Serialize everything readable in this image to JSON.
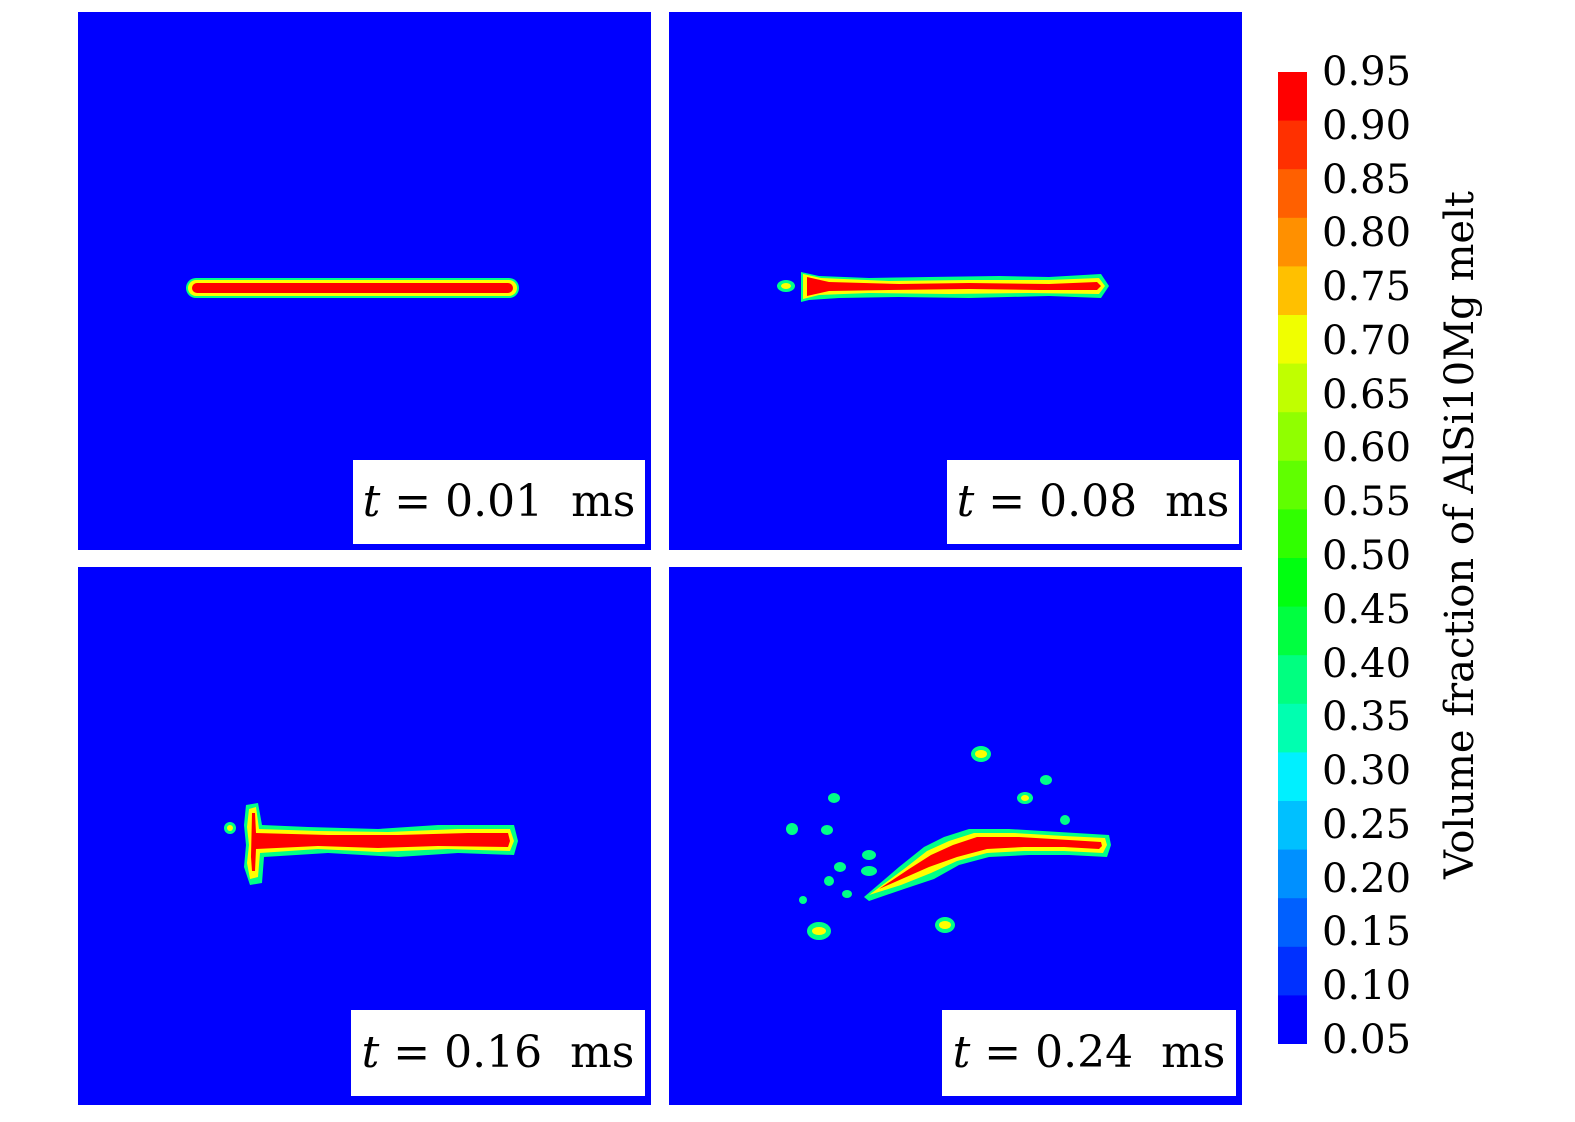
{
  "panels": [
    {
      "id": "p1",
      "time_prefix": "t",
      "time_value": "= 0.01  ms"
    },
    {
      "id": "p2",
      "time_prefix": "t",
      "time_value": "= 0.08  ms"
    },
    {
      "id": "p3",
      "time_prefix": "t",
      "time_value": "= 0.16  ms"
    },
    {
      "id": "p4",
      "time_prefix": "t",
      "time_value": "= 0.24  ms"
    }
  ],
  "colorbar": {
    "title": "Volume fraction of AlSi10Mg melt",
    "ticks": [
      "0.95",
      "0.90",
      "0.85",
      "0.80",
      "0.75",
      "0.70",
      "0.65",
      "0.60",
      "0.55",
      "0.50",
      "0.45",
      "0.40",
      "0.35",
      "0.30",
      "0.25",
      "0.20",
      "0.15",
      "0.10",
      "0.05"
    ],
    "colors": [
      "#ff0000",
      "#ff3000",
      "#ff6000",
      "#ff9000",
      "#ffc000",
      "#f0ff00",
      "#c0ff00",
      "#90ff00",
      "#60ff00",
      "#30ff00",
      "#00ff10",
      "#00ff40",
      "#00ff80",
      "#00ffb0",
      "#00f0ff",
      "#00c0ff",
      "#0090ff",
      "#0060ff",
      "#0030ff",
      "#0000ff"
    ]
  },
  "colors": {
    "background_fluid": "#0000ff",
    "melt_core": "#ff0000",
    "melt_edge": "#ffff00",
    "melt_halo": "#00ff88"
  }
}
